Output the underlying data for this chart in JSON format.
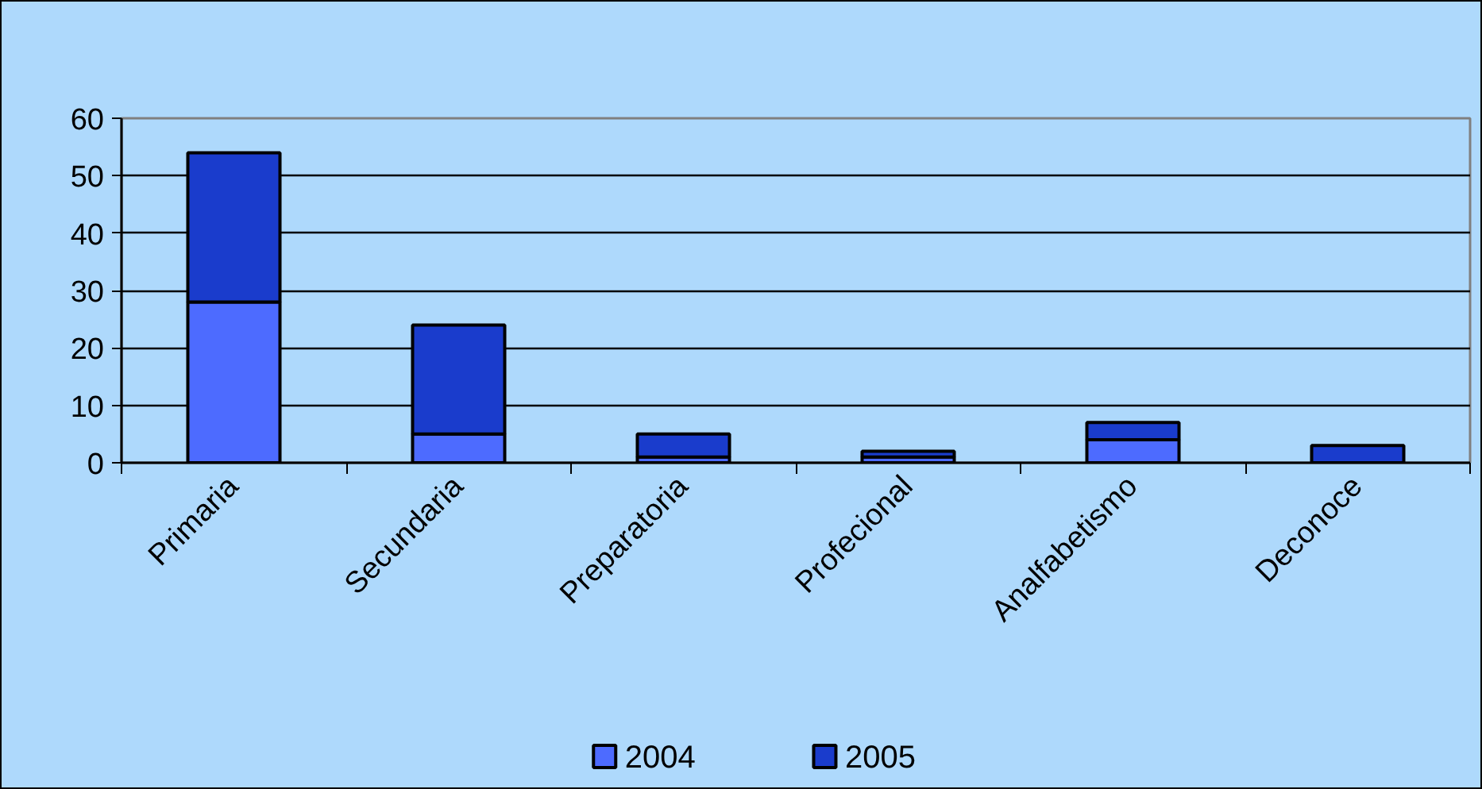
{
  "chart_data": {
    "type": "bar",
    "stacked": true,
    "categories": [
      "Primaria",
      "Secundaria",
      "Preparatoria",
      "Profecional",
      "Analfabetismo",
      "Deconoce"
    ],
    "series": [
      {
        "name": "2004",
        "color": "#4d6bff",
        "values": [
          28,
          5,
          1,
          1,
          4,
          0
        ]
      },
      {
        "name": "2005",
        "color": "#1a3ccc",
        "values": [
          26,
          19,
          4,
          1,
          3,
          3
        ]
      }
    ],
    "ylim": [
      0,
      60
    ],
    "yticks": [
      0,
      10,
      20,
      30,
      40,
      50,
      60
    ],
    "grid": "y",
    "legend": "bottom"
  }
}
